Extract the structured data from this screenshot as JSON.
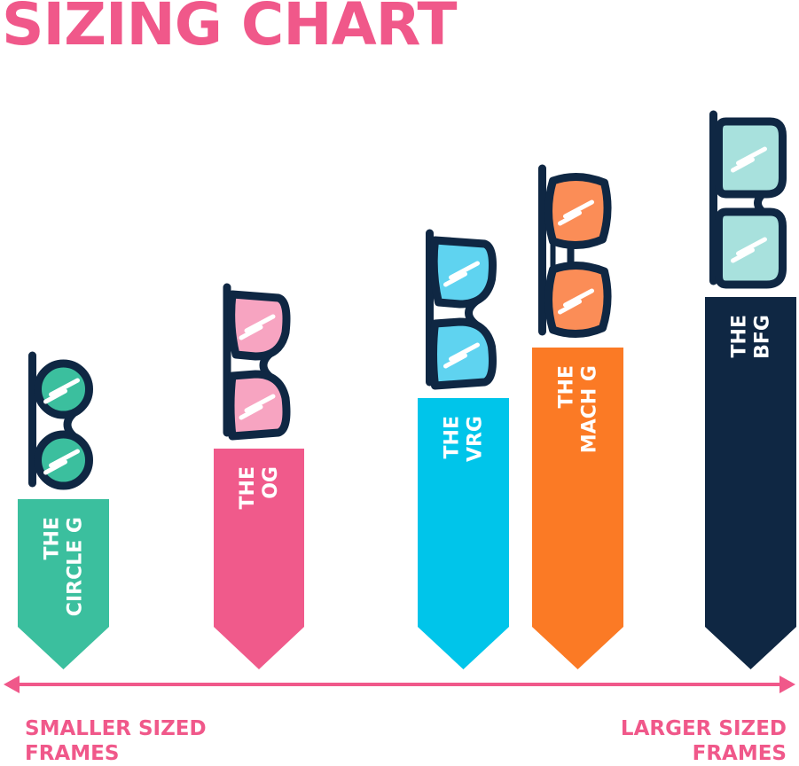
{
  "title": "SIZING CHART",
  "scale": {
    "left_label": [
      "SMALLER SIZED",
      "FRAMES"
    ],
    "right_label": [
      "LARGER SIZED",
      "FRAMES"
    ]
  },
  "colors": {
    "accent": "#f0588a",
    "frame": "#0f2743",
    "text_on_bar": "#ffffff"
  },
  "chart_data": {
    "type": "bar",
    "orientation": "vertical",
    "categories": [
      "THE CIRCLE G",
      "THE OG",
      "THE VRG",
      "THE MACH G",
      "THE BFG"
    ],
    "values": [
      1,
      2,
      3,
      4,
      5
    ],
    "xlabel": "",
    "ylabel": "",
    "grid": false,
    "legend": "none",
    "bars": [
      {
        "line1": "THE",
        "line2": "CIRCLE G",
        "color": "#3bbf9e",
        "lens_color": "#3bbf9e",
        "lens_shape": "round",
        "icon": "round-sunglasses-icon"
      },
      {
        "line1": "THE",
        "line2": "OG",
        "color": "#f05a8b",
        "lens_color": "#f7a4c1",
        "lens_shape": "wayfarer",
        "icon": "wayfarer-sunglasses-icon"
      },
      {
        "line1": "THE",
        "line2": "VRG",
        "color": "#00c5ea",
        "lens_color": "#5fd3f0",
        "lens_shape": "wayfarer",
        "icon": "wayfarer-sunglasses-icon"
      },
      {
        "line1": "THE",
        "line2": "MACH G",
        "color": "#fb7a25",
        "lens_color": "#fb8d57",
        "lens_shape": "aviator",
        "icon": "aviator-sunglasses-icon"
      },
      {
        "line1": "THE",
        "line2": "BFG",
        "color": "#0f2743",
        "lens_color": "#a8e1dd",
        "lens_shape": "square",
        "icon": "square-sunglasses-icon"
      }
    ]
  }
}
